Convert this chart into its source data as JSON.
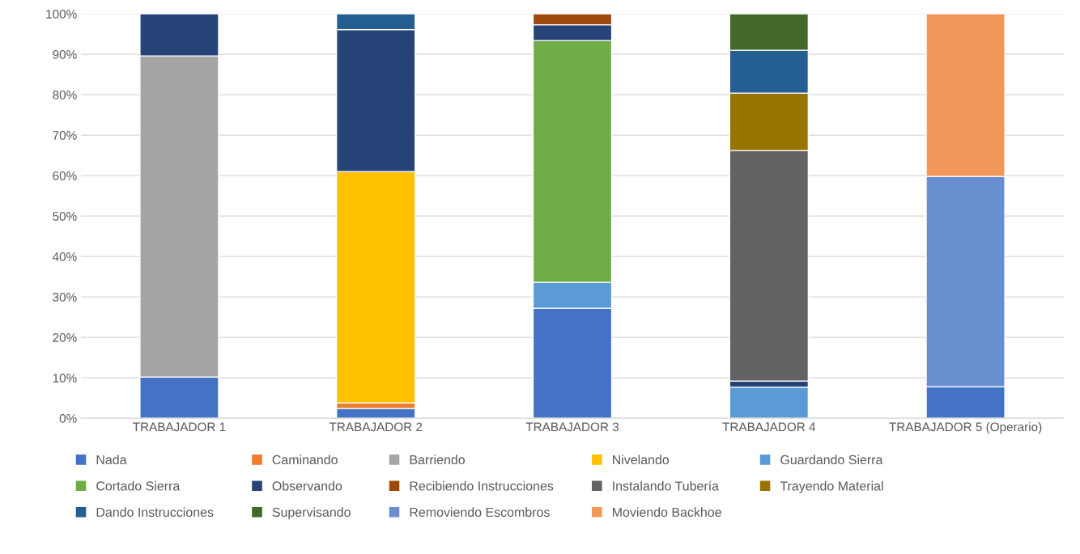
{
  "chart_data": {
    "type": "bar",
    "stacked": true,
    "categories": [
      "TRABAJADOR 1",
      "TRABAJADOR 2",
      "TRABAJADOR 3",
      "TRABAJADOR 4",
      "TRABAJADOR 5 (Operario)"
    ],
    "series": [
      {
        "name": "Nada",
        "color": "#4472c4",
        "values": [
          10.2,
          2.4,
          27.2,
          null,
          7.8
        ]
      },
      {
        "name": "Caminando",
        "color": "#ed7d31",
        "values": [
          null,
          1.4,
          null,
          null,
          null
        ]
      },
      {
        "name": "Barriendo",
        "color": "#a5a5a5",
        "values": [
          79.4,
          null,
          null,
          null,
          null
        ]
      },
      {
        "name": "Nivelando",
        "color": "#ffc000",
        "values": [
          null,
          57.2,
          null,
          null,
          null
        ]
      },
      {
        "name": "Guardando Sierra",
        "color": "#5b9bd5",
        "values": [
          null,
          null,
          6.4,
          7.7,
          null
        ]
      },
      {
        "name": "Cortado Sierra",
        "color": "#70ad47",
        "values": [
          null,
          null,
          59.8,
          null,
          null
        ]
      },
      {
        "name": "Observando",
        "color": "#264478",
        "values": [
          10.4,
          35.1,
          3.9,
          1.5,
          null
        ]
      },
      {
        "name": "Recibiendo Instrucciones",
        "color": "#9e480e",
        "values": [
          null,
          null,
          2.7,
          null,
          null
        ]
      },
      {
        "name": "Instalando Tubería",
        "color": "#636363",
        "values": [
          null,
          null,
          null,
          57.0,
          null
        ]
      },
      {
        "name": "Trayendo Material",
        "color": "#997300",
        "values": [
          null,
          null,
          null,
          14.2,
          null
        ]
      },
      {
        "name": "Dando Instrucciones",
        "color": "#255e91",
        "values": [
          null,
          3.9,
          null,
          10.6,
          null
        ]
      },
      {
        "name": "Supervisando",
        "color": "#43682b",
        "values": [
          null,
          null,
          null,
          9.0,
          null
        ]
      },
      {
        "name": "Removiendo Escombros",
        "color": "#698ed0",
        "values": [
          null,
          null,
          null,
          null,
          52.0
        ]
      },
      {
        "name": "Moviendo Backhoe",
        "color": "#f1975a",
        "values": [
          null,
          null,
          null,
          null,
          40.2
        ]
      }
    ],
    "ylim": [
      0,
      100
    ],
    "yticks": [
      {
        "value": 0,
        "label": "0%"
      },
      {
        "value": 10,
        "label": "10%"
      },
      {
        "value": 20,
        "label": "20%"
      },
      {
        "value": 30,
        "label": "30%"
      },
      {
        "value": 40,
        "label": "40%"
      },
      {
        "value": 50,
        "label": "50%"
      },
      {
        "value": 60,
        "label": "60%"
      },
      {
        "value": 70,
        "label": "70%"
      },
      {
        "value": 80,
        "label": "80%"
      },
      {
        "value": 90,
        "label": "90%"
      },
      {
        "value": 100,
        "label": "100%"
      }
    ],
    "grid": "y",
    "legend": "bottom"
  }
}
